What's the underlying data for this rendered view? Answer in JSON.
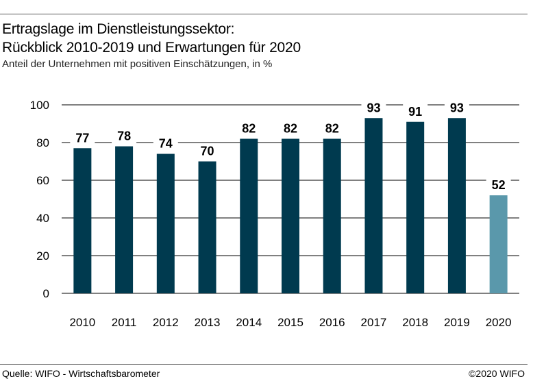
{
  "header": {
    "title_line1": "Ertragslage im Dienstleistungssektor:",
    "title_line2": "Rückblick 2010-2019 und Erwartungen für 2020",
    "subtitle": "Anteil der Unternehmen mit positiven Einschätzungen, in %"
  },
  "footer": {
    "source": "Quelle: WIFO - Wirtschaftsbarometer",
    "copyright": "©2020 WIFO"
  },
  "colors": {
    "past": "#003a4f",
    "forecast": "#5a98ab",
    "grid": "#000000"
  },
  "chart_data": {
    "type": "bar",
    "title": "",
    "xlabel": "",
    "ylabel": "",
    "categories": [
      "2010",
      "2011",
      "2012",
      "2013",
      "2014",
      "2015",
      "2016",
      "2017",
      "2018",
      "2019",
      "2020"
    ],
    "values": [
      77,
      78,
      74,
      70,
      82,
      82,
      82,
      93,
      91,
      93,
      52
    ],
    "highlight": [
      false,
      false,
      false,
      false,
      false,
      false,
      false,
      false,
      false,
      false,
      true
    ],
    "ylim": [
      0,
      100
    ],
    "yticks": [
      0,
      20,
      40,
      60,
      80,
      100
    ],
    "grid": true,
    "data_labels": true
  }
}
